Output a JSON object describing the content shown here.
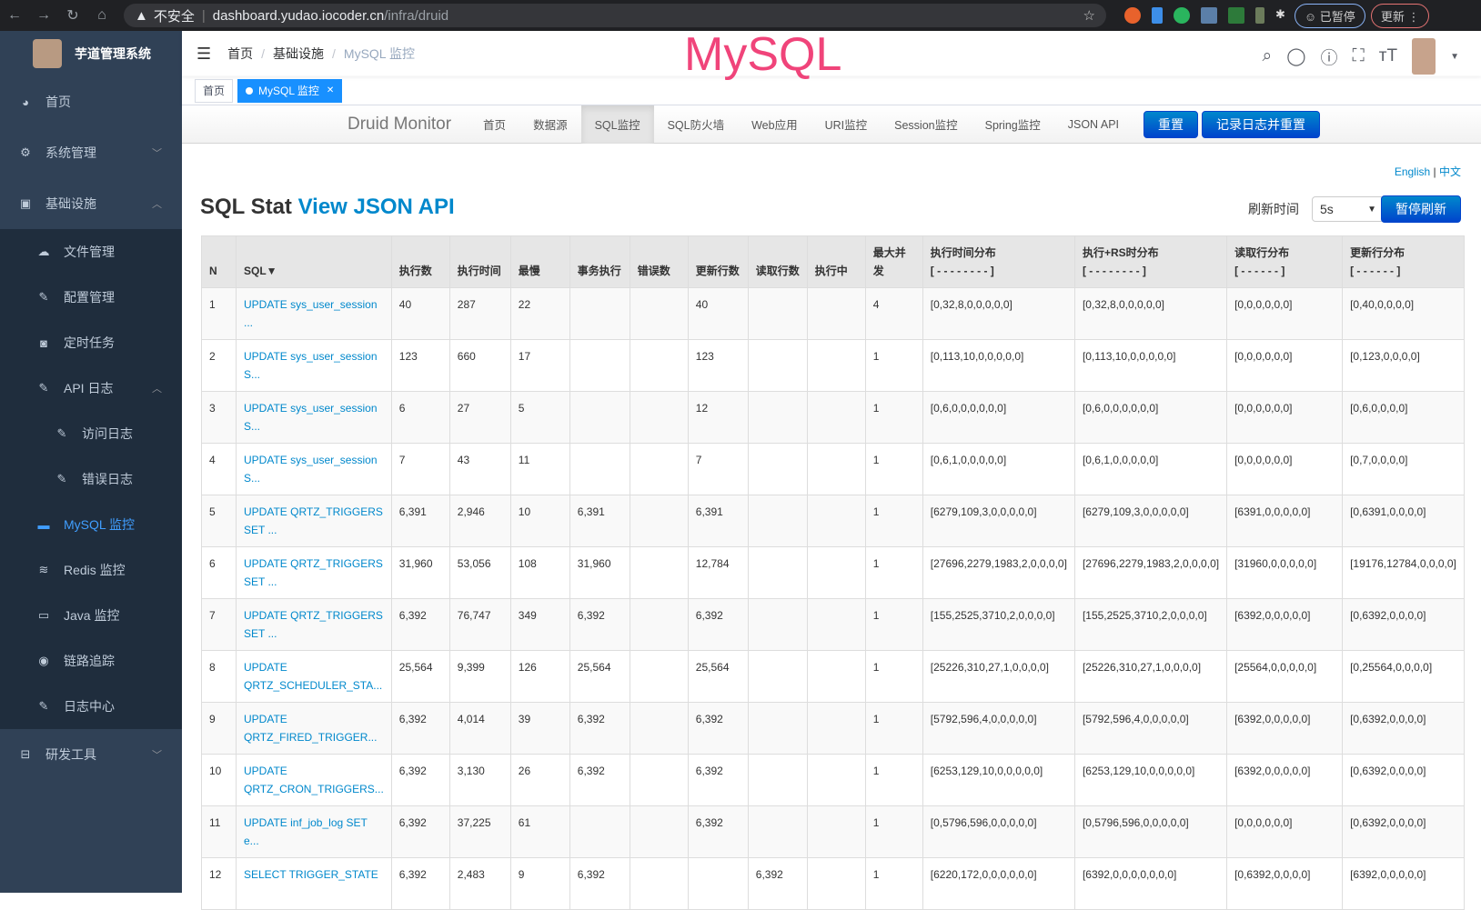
{
  "browser": {
    "security": "不安全",
    "host": "dashboard.yudao.iocoder.cn",
    "path": "/infra/druid",
    "paused": "已暂停",
    "update": "更新"
  },
  "sidebar": {
    "app_title": "芋道管理系统",
    "items": [
      {
        "label": "首页",
        "icon": "dashboard-icon"
      },
      {
        "label": "系统管理",
        "icon": "gear-icon"
      },
      {
        "label": "基础设施",
        "icon": "monitor-icon"
      },
      {
        "label": "文件管理",
        "icon": "cloud-upload-icon"
      },
      {
        "label": "配置管理",
        "icon": "edit-icon"
      },
      {
        "label": "定时任务",
        "icon": "job-icon"
      },
      {
        "label": "API 日志",
        "icon": "edit-icon"
      },
      {
        "label": "访问日志",
        "icon": "edit-icon"
      },
      {
        "label": "错误日志",
        "icon": "edit-icon"
      },
      {
        "label": "MySQL 监控",
        "icon": "database-icon"
      },
      {
        "label": "Redis 监控",
        "icon": "redis-icon"
      },
      {
        "label": "Java 监控",
        "icon": "server-icon"
      },
      {
        "label": "链路追踪",
        "icon": "eye-icon"
      },
      {
        "label": "日志中心",
        "icon": "edit-icon"
      },
      {
        "label": "研发工具",
        "icon": "toolbox-icon"
      }
    ]
  },
  "navbar": {
    "breadcrumb": [
      "首页",
      "基础设施",
      "MySQL 监控"
    ],
    "overlay_title": "MySQL"
  },
  "tags": [
    "首页",
    "MySQL 监控"
  ],
  "druid": {
    "brand": "Druid Monitor",
    "nav": [
      "首页",
      "数据源",
      "SQL监控",
      "SQL防火墙",
      "Web应用",
      "URI监控",
      "Session监控",
      "Spring监控",
      "JSON API"
    ],
    "active": "SQL监控",
    "reset": "重置",
    "log_reset": "记录日志并重置"
  },
  "lang": {
    "en": "English",
    "sep": "|",
    "zh": "中文"
  },
  "page": {
    "title": "SQL Stat",
    "title_link": "View JSON API",
    "refresh_label": "刷新时间",
    "refresh_value": "5s",
    "pause": "暂停刷新"
  },
  "table": {
    "headers": [
      "N",
      "SQL▼",
      "执行数",
      "执行时间",
      "最慢",
      "事务执行",
      "错误数",
      "更新行数",
      "读取行数",
      "执行中",
      "最大并发",
      "执行时间分布",
      "执行+RS时分布",
      "读取行分布",
      "更新行分布"
    ],
    "header_subs": {
      "11": "[ - - - - - - - - ]",
      "12": "[ - - - - - - - - ]",
      "13": "[ - - - - - - ]",
      "14": "[ - - - - - - ]"
    },
    "rows": [
      [
        "1",
        "UPDATE sys_user_session ...",
        "40",
        "287",
        "22",
        "",
        "",
        "40",
        "",
        "",
        "4",
        "[0,32,8,0,0,0,0,0]",
        "[0,32,8,0,0,0,0,0]",
        "[0,0,0,0,0,0]",
        "[0,40,0,0,0,0]"
      ],
      [
        "2",
        "UPDATE sys_user_session S...",
        "123",
        "660",
        "17",
        "",
        "",
        "123",
        "",
        "",
        "1",
        "[0,113,10,0,0,0,0,0]",
        "[0,113,10,0,0,0,0,0]",
        "[0,0,0,0,0,0]",
        "[0,123,0,0,0,0]"
      ],
      [
        "3",
        "UPDATE sys_user_session S...",
        "6",
        "27",
        "5",
        "",
        "",
        "12",
        "",
        "",
        "1",
        "[0,6,0,0,0,0,0,0]",
        "[0,6,0,0,0,0,0,0]",
        "[0,0,0,0,0,0]",
        "[0,6,0,0,0,0]"
      ],
      [
        "4",
        "UPDATE sys_user_session S...",
        "7",
        "43",
        "11",
        "",
        "",
        "7",
        "",
        "",
        "1",
        "[0,6,1,0,0,0,0,0]",
        "[0,6,1,0,0,0,0,0]",
        "[0,0,0,0,0,0]",
        "[0,7,0,0,0,0]"
      ],
      [
        "5",
        "UPDATE QRTZ_TRIGGERS SET ...",
        "6,391",
        "2,946",
        "10",
        "6,391",
        "",
        "6,391",
        "",
        "",
        "1",
        "[6279,109,3,0,0,0,0,0]",
        "[6279,109,3,0,0,0,0,0]",
        "[6391,0,0,0,0,0]",
        "[0,6391,0,0,0,0]"
      ],
      [
        "6",
        "UPDATE QRTZ_TRIGGERS SET ...",
        "31,960",
        "53,056",
        "108",
        "31,960",
        "",
        "12,784",
        "",
        "",
        "1",
        "[27696,2279,1983,2,0,0,0,0]",
        "[27696,2279,1983,2,0,0,0,0]",
        "[31960,0,0,0,0,0]",
        "[19176,12784,0,0,0,0]"
      ],
      [
        "7",
        "UPDATE QRTZ_TRIGGERS SET ...",
        "6,392",
        "76,747",
        "349",
        "6,392",
        "",
        "6,392",
        "",
        "",
        "1",
        "[155,2525,3710,2,0,0,0,0]",
        "[155,2525,3710,2,0,0,0,0]",
        "[6392,0,0,0,0,0]",
        "[0,6392,0,0,0,0]"
      ],
      [
        "8",
        "UPDATE QRTZ_SCHEDULER_STA...",
        "25,564",
        "9,399",
        "126",
        "25,564",
        "",
        "25,564",
        "",
        "",
        "1",
        "[25226,310,27,1,0,0,0,0]",
        "[25226,310,27,1,0,0,0,0]",
        "[25564,0,0,0,0,0]",
        "[0,25564,0,0,0,0]"
      ],
      [
        "9",
        "UPDATE QRTZ_FIRED_TRIGGER...",
        "6,392",
        "4,014",
        "39",
        "6,392",
        "",
        "6,392",
        "",
        "",
        "1",
        "[5792,596,4,0,0,0,0,0]",
        "[5792,596,4,0,0,0,0,0]",
        "[6392,0,0,0,0,0]",
        "[0,6392,0,0,0,0]"
      ],
      [
        "10",
        "UPDATE QRTZ_CRON_TRIGGERS...",
        "6,392",
        "3,130",
        "26",
        "6,392",
        "",
        "6,392",
        "",
        "",
        "1",
        "[6253,129,10,0,0,0,0,0]",
        "[6253,129,10,0,0,0,0,0]",
        "[6392,0,0,0,0,0]",
        "[0,6392,0,0,0,0]"
      ],
      [
        "11",
        "UPDATE inf_job_log SET e...",
        "6,392",
        "37,225",
        "61",
        "",
        "",
        "6,392",
        "",
        "",
        "1",
        "[0,5796,596,0,0,0,0,0]",
        "[0,5796,596,0,0,0,0,0]",
        "[0,0,0,0,0,0]",
        "[0,6392,0,0,0,0]"
      ],
      [
        "12",
        "SELECT TRIGGER_STATE",
        "6,392",
        "2,483",
        "9",
        "6,392",
        "",
        "",
        "6,392",
        "",
        "1",
        "[6220,172,0,0,0,0,0,0]",
        "[6392,0,0,0,0,0,0,0]",
        "[0,6392,0,0,0,0]",
        "[6392,0,0,0,0,0]"
      ]
    ]
  }
}
